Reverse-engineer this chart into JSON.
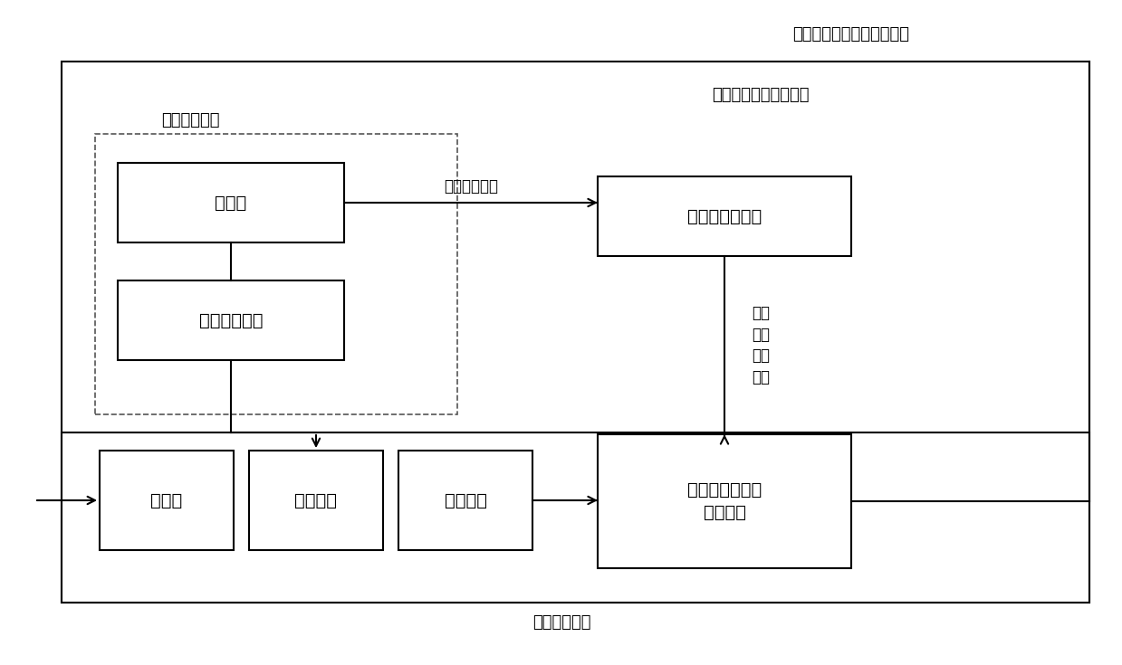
{
  "title_top": "累积误差补偿反向补偿函数",
  "label_position": "位置执行机构",
  "label_simulate": "模拟柱塞轴向运动行程",
  "label_constant_force": "恒力执行机构",
  "label_stroke": "行程实测数值",
  "box_guangshan": "光栅尺",
  "box_guangshan_read": "光栅尺读数头",
  "box_liquid_pump_ctrl": "液相泵控制系统",
  "box_liquid_pump": "液相泵",
  "box_simulate_piston": "模拟柱塞",
  "box_force_sensor": "力传感器",
  "box_fine_tune": "微调机构和微调\n执行机构",
  "label_pressure": "恒定\n压力\n调整\n信息",
  "bg_color": "#ffffff",
  "box_color": "#ffffff",
  "border_color": "#000000",
  "text_color": "#000000"
}
